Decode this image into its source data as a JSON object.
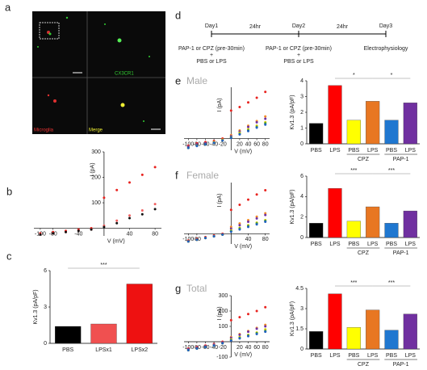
{
  "images": {
    "panel": "a",
    "labels": [
      "CX3CR1",
      "Microglia",
      "Merge"
    ]
  },
  "timeline": {
    "panel": "d",
    "days": [
      "Day1",
      "Day2",
      "Day3"
    ],
    "intervals": [
      "24hr",
      "24hr"
    ],
    "steps": [
      [
        "PAP-1 or CPZ (pre-30min)",
        "+",
        "PBS or LPS"
      ],
      [
        "PAP-1 or CPZ (pre-30min)",
        "+",
        "PBS or LPS"
      ],
      [
        "Electrophysiology"
      ]
    ]
  },
  "chart_data": [
    {
      "type": "scatter",
      "panel": "b",
      "x_label": "V (mV)",
      "y_label": "I (pA)",
      "x": [
        -100,
        -80,
        -60,
        -40,
        -20,
        0,
        20,
        40,
        60,
        80
      ],
      "xlim": [
        -110,
        90
      ],
      "xticks": [
        -100,
        -80,
        -40,
        40,
        80
      ],
      "ylim": [
        -30,
        300
      ],
      "yticks": [
        100,
        200,
        300
      ],
      "series": [
        {
          "color": "#e8231f",
          "values": [
            -20,
            -15,
            -10,
            -5,
            0,
            120,
            150,
            180,
            210,
            240
          ]
        },
        {
          "color": "#f06060",
          "values": [
            -25,
            -20,
            -15,
            -10,
            -5,
            10,
            30,
            50,
            70,
            95
          ]
        },
        {
          "color": "#111111",
          "values": [
            -25,
            -20,
            -15,
            -10,
            -5,
            5,
            20,
            40,
            55,
            75
          ]
        }
      ]
    },
    {
      "type": "bar",
      "panel": "c",
      "y_label": "Kv1.3 (pA/pF)",
      "categories": [
        "PBS",
        "LPSx1",
        "LPSx2"
      ],
      "values": [
        1.4,
        1.6,
        4.9
      ],
      "colors": [
        "#000000",
        "#f05050",
        "#ee1111"
      ],
      "ylim": [
        0,
        6
      ],
      "yticks": [
        0,
        3,
        6
      ],
      "annotations": [
        {
          "text": "***",
          "from": 0,
          "to": 2
        }
      ]
    },
    {
      "type": "scatter",
      "panel": "e",
      "title": "Male",
      "x_label": "V (mV)",
      "y_label": "I (pA)",
      "x": [
        -100,
        -80,
        -60,
        -40,
        -20,
        0,
        20,
        40,
        60,
        80
      ],
      "xlim": [
        -110,
        90
      ],
      "xticks": [
        -100,
        -80,
        -60,
        -40,
        -20,
        20,
        40,
        60,
        80
      ],
      "ylim": [
        -50,
        220
      ],
      "series": [
        {
          "color": "#e8231f",
          "values": [
            -30,
            -20,
            -15,
            -10,
            0,
            120,
            135,
            155,
            175,
            200
          ]
        },
        {
          "color": "#f28c28",
          "values": [
            -35,
            -25,
            -20,
            -15,
            -5,
            15,
            35,
            55,
            75,
            95
          ]
        },
        {
          "color": "#7030a0",
          "values": [
            -35,
            -25,
            -20,
            -15,
            -5,
            10,
            30,
            50,
            70,
            85
          ]
        },
        {
          "color": "#d8c800",
          "values": [
            -40,
            -30,
            -25,
            -15,
            -5,
            5,
            25,
            40,
            55,
            70
          ]
        },
        {
          "color": "#3a9a3a",
          "values": [
            -40,
            -30,
            -25,
            -18,
            -8,
            5,
            20,
            35,
            50,
            65
          ]
        },
        {
          "color": "#2060c0",
          "values": [
            -40,
            -32,
            -25,
            -18,
            -8,
            3,
            18,
            32,
            47,
            60
          ]
        }
      ]
    },
    {
      "type": "bar",
      "y_label": "Kv1.3 (pA/pF)",
      "categories": [
        "PBS",
        "LPS",
        "PBS",
        "LPS",
        "PBS",
        "LPS"
      ],
      "group_labels": [
        null,
        null,
        "CPZ",
        null,
        "PAP-1",
        null
      ],
      "values": [
        1.3,
        3.7,
        1.5,
        2.7,
        1.5,
        2.6
      ],
      "colors": [
        "#000000",
        "#ff0000",
        "#ffff00",
        "#e87722",
        "#1f77d0",
        "#7030a0"
      ],
      "ylim": [
        0,
        4
      ],
      "yticks": [
        0,
        1,
        2,
        3,
        4
      ],
      "annotations": [
        {
          "text": "*",
          "from": 1,
          "to": 3
        },
        {
          "text": "*",
          "from": 3,
          "to": 5
        }
      ]
    },
    {
      "type": "scatter",
      "panel": "f",
      "title": "Female",
      "x_label": "V (mV)",
      "y_label": "I (pA)",
      "x": [
        -100,
        -80,
        -60,
        -40,
        -20,
        0,
        20,
        40,
        60,
        80
      ],
      "xlim": [
        -110,
        90
      ],
      "xticks": [
        -100,
        -80,
        40,
        80
      ],
      "ylim": [
        -60,
        300
      ],
      "series": [
        {
          "color": "#e8231f",
          "values": [
            -40,
            -30,
            -20,
            -10,
            0,
            140,
            170,
            200,
            230,
            255
          ]
        },
        {
          "color": "#f28c28",
          "values": [
            -45,
            -35,
            -25,
            -15,
            -5,
            40,
            60,
            80,
            100,
            120
          ]
        },
        {
          "color": "#7030a0",
          "values": [
            -45,
            -35,
            -25,
            -15,
            -5,
            30,
            50,
            70,
            90,
            110
          ]
        },
        {
          "color": "#d8c800",
          "values": [
            -45,
            -35,
            -25,
            -15,
            -5,
            20,
            35,
            50,
            65,
            80
          ]
        },
        {
          "color": "#3a9a3a",
          "values": [
            -45,
            -35,
            -25,
            -15,
            -5,
            15,
            30,
            45,
            60,
            75
          ]
        },
        {
          "color": "#2060c0",
          "values": [
            -45,
            -35,
            -25,
            -15,
            -5,
            12,
            25,
            40,
            55,
            70
          ]
        }
      ]
    },
    {
      "type": "bar",
      "y_label": "Kv1.3 (pA/pF)",
      "categories": [
        "PBS",
        "LPS",
        "PBS",
        "LPS",
        "PBS",
        "LPS"
      ],
      "group_labels": [
        null,
        null,
        "CPZ",
        null,
        "PAP-1",
        null
      ],
      "values": [
        1.4,
        4.8,
        1.6,
        3.0,
        1.4,
        2.6
      ],
      "colors": [
        "#000000",
        "#ff0000",
        "#ffff00",
        "#e87722",
        "#1f77d0",
        "#7030a0"
      ],
      "ylim": [
        0,
        6
      ],
      "yticks": [
        0,
        2,
        4,
        6
      ],
      "annotations": [
        {
          "text": "***",
          "from": 1,
          "to": 3
        },
        {
          "text": "***",
          "from": 3,
          "to": 5
        }
      ]
    },
    {
      "type": "scatter",
      "panel": "g",
      "title": "Total",
      "x_label": "V (mV)",
      "y_label": "I (pA)",
      "x": [
        -100,
        -80,
        -60,
        -40,
        -20,
        0,
        20,
        40,
        60,
        80
      ],
      "xlim": [
        -110,
        90
      ],
      "xticks": [
        -100,
        -80,
        -60,
        -40,
        -20,
        20,
        40,
        60,
        80
      ],
      "ylim": [
        -100,
        300
      ],
      "yticks": [
        -100,
        100,
        200,
        300
      ],
      "series": [
        {
          "color": "#e8231f",
          "values": [
            -45,
            -35,
            -25,
            -15,
            0,
            140,
            160,
            180,
            200,
            225
          ]
        },
        {
          "color": "#f28c28",
          "values": [
            -50,
            -40,
            -30,
            -20,
            -5,
            30,
            50,
            70,
            90,
            110
          ]
        },
        {
          "color": "#7030a0",
          "values": [
            -50,
            -40,
            -30,
            -20,
            -5,
            25,
            45,
            65,
            85,
            100
          ]
        },
        {
          "color": "#d8c800",
          "values": [
            -55,
            -45,
            -35,
            -25,
            -10,
            15,
            30,
            45,
            60,
            80
          ]
        },
        {
          "color": "#3a9a3a",
          "values": [
            -55,
            -45,
            -35,
            -25,
            -10,
            10,
            25,
            40,
            55,
            70
          ]
        },
        {
          "color": "#2060c0",
          "values": [
            -55,
            -45,
            -35,
            -25,
            -10,
            8,
            22,
            36,
            50,
            65
          ]
        }
      ]
    },
    {
      "type": "bar",
      "y_label": "Kv1.3 (pA/pF)",
      "categories": [
        "PBS",
        "LPS",
        "PBS",
        "LPS",
        "PBS",
        "LPS"
      ],
      "group_labels": [
        null,
        null,
        "CPZ",
        null,
        "PAP-1",
        null
      ],
      "values": [
        1.3,
        4.1,
        1.6,
        2.9,
        1.4,
        2.6
      ],
      "colors": [
        "#000000",
        "#ff0000",
        "#ffff00",
        "#e87722",
        "#1f77d0",
        "#7030a0"
      ],
      "ylim": [
        0,
        4.5
      ],
      "yticks": [
        0,
        1.5,
        3,
        4.5
      ],
      "annotations": [
        {
          "text": "***",
          "from": 1,
          "to": 3
        },
        {
          "text": "***",
          "from": 3,
          "to": 5
        }
      ]
    }
  ]
}
